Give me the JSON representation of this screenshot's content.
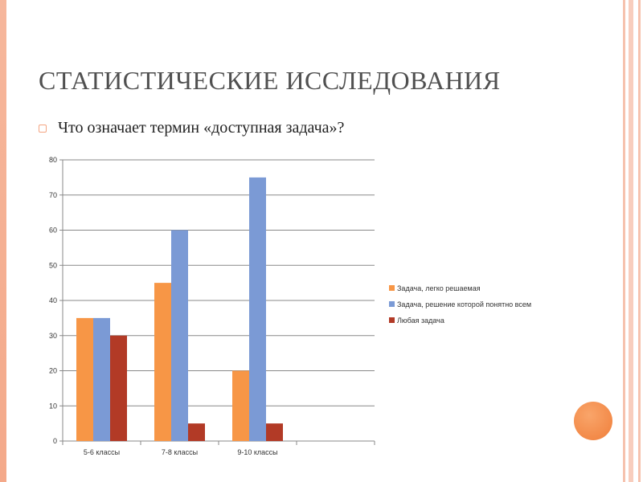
{
  "slide": {
    "title": "СТАТИСТИЧЕСКИЕ ИССЛЕДОВАНИЯ",
    "bullet": "Что означает термин «доступная задача»?"
  },
  "colors": {
    "accent": "#f4a582",
    "series1": "#f79646",
    "series2": "#7b9ad5",
    "series3": "#b23a26",
    "gridline": "#888888",
    "decoration": "#f07e3a"
  },
  "chart_data": {
    "type": "bar",
    "categories": [
      "5-6 классы",
      "7-8 классы",
      "9-10 классы",
      ""
    ],
    "series": [
      {
        "name": "Задача, легко решаемая",
        "values": [
          35,
          45,
          20,
          null
        ]
      },
      {
        "name": "Задача, решение которой понятно всем",
        "values": [
          35,
          60,
          75,
          null
        ]
      },
      {
        "name": "Любая задача",
        "values": [
          30,
          5,
          5,
          null
        ]
      }
    ],
    "ylim": [
      0,
      80
    ],
    "yticks": [
      0,
      10,
      20,
      30,
      40,
      50,
      60,
      70,
      80
    ],
    "grid": true,
    "legend": "right"
  }
}
